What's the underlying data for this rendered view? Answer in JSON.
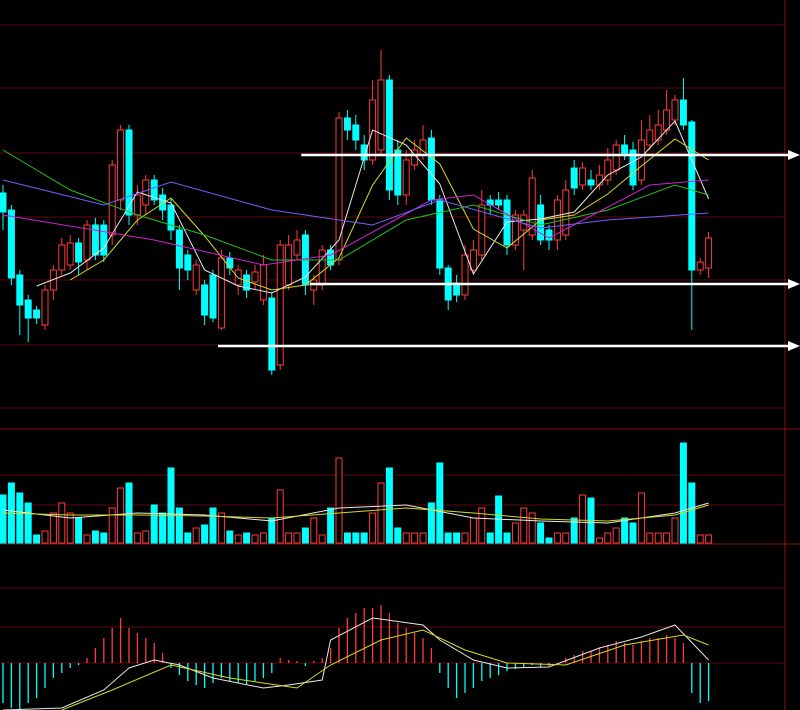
{
  "chart_data": [
    {
      "type": "candlestick",
      "open": [
        217,
        200,
        135,
        110,
        100,
        85,
        120,
        140,
        145,
        167,
        150,
        185,
        185,
        175,
        210,
        280,
        195,
        205,
        230,
        215,
        205,
        180,
        155,
        120,
        125,
        135,
        82,
        152,
        125,
        135,
        128,
        110,
        112,
        45,
        125,
        155,
        175,
        120,
        125,
        160,
        150,
        292,
        285,
        265,
        250,
        260,
        330,
        260,
        215,
        245,
        255,
        272,
        210,
        142,
        127,
        115,
        140,
        155,
        210,
        210,
        210,
        165,
        180,
        175,
        205,
        180,
        170,
        175,
        242,
        225,
        230,
        225,
        230,
        240,
        265,
        260,
        230,
        265,
        270,
        280,
        290,
        310,
        288,
        140,
        142
      ],
      "close": [
        198,
        132,
        105,
        92,
        92,
        120,
        140,
        165,
        167,
        148,
        185,
        155,
        155,
        245,
        280,
        195,
        215,
        230,
        210,
        200,
        180,
        142,
        140,
        145,
        95,
        92,
        152,
        142,
        140,
        120,
        138,
        145,
        40,
        165,
        165,
        170,
        125,
        130,
        160,
        145,
        292,
        280,
        270,
        250,
        310,
        330,
        220,
        215,
        250,
        260,
        270,
        210,
        142,
        110,
        115,
        155,
        160,
        205,
        205,
        205,
        165,
        195,
        195,
        232,
        170,
        170,
        210,
        220,
        222,
        242,
        225,
        235,
        250,
        265,
        255,
        225,
        270,
        280,
        285,
        300,
        310,
        285,
        140,
        148,
        172
      ],
      "high": [
        225,
        205,
        140,
        115,
        104,
        125,
        145,
        172,
        175,
        172,
        190,
        192,
        190,
        250,
        285,
        285,
        225,
        235,
        235,
        222,
        212,
        185,
        160,
        150,
        130,
        140,
        160,
        158,
        145,
        140,
        145,
        155,
        118,
        170,
        175,
        180,
        180,
        135,
        165,
        165,
        298,
        300,
        295,
        275,
        330,
        360,
        335,
        270,
        260,
        270,
        285,
        280,
        215,
        145,
        135,
        165,
        170,
        220,
        215,
        218,
        215,
        200,
        200,
        240,
        215,
        185,
        215,
        230,
        250,
        248,
        240,
        245,
        262,
        270,
        275,
        268,
        290,
        295,
        300,
        320,
        315,
        332,
        290,
        152,
        178
      ],
      "low": [
        180,
        125,
        75,
        68,
        86,
        80,
        110,
        135,
        140,
        135,
        140,
        150,
        148,
        165,
        200,
        185,
        185,
        195,
        205,
        190,
        170,
        120,
        130,
        115,
        85,
        88,
        80,
        135,
        115,
        112,
        120,
        105,
        35,
        40,
        120,
        150,
        115,
        105,
        120,
        140,
        145,
        270,
        260,
        240,
        245,
        255,
        210,
        205,
        205,
        240,
        250,
        205,
        135,
        100,
        108,
        110,
        135,
        150,
        195,
        200,
        155,
        160,
        140,
        170,
        165,
        160,
        160,
        170,
        215,
        220,
        220,
        220,
        225,
        235,
        250,
        220,
        225,
        260,
        265,
        275,
        285,
        280,
        80,
        135,
        132
      ],
      "ylim": [
        0,
        410
      ],
      "up_color": "#ff3c3c",
      "down_color": "#00ffff",
      "lines": [
        {
          "color": "#e8e8e8",
          "x": [
            4,
            8,
            12,
            16,
            20,
            24,
            28,
            32,
            36,
            40,
            44,
            48,
            52,
            56,
            60,
            64,
            68,
            72,
            76,
            80,
            84
          ],
          "values": [
            124,
            137,
            162,
            218,
            207,
            140,
            124,
            117,
            133,
            170,
            280,
            265,
            226,
            136,
            188,
            191,
            198,
            235,
            253,
            289,
            211
          ]
        },
        {
          "color": "#d8d820",
          "x": [
            8,
            12,
            16,
            20,
            24,
            28,
            32,
            36,
            40,
            44,
            48,
            52,
            56,
            60,
            64,
            68,
            72,
            76,
            80,
            84
          ],
          "values": [
            130,
            150,
            190,
            212,
            174,
            132,
            120,
            125,
            152,
            225,
            272,
            246,
            181,
            162,
            190,
            195,
            216,
            244,
            271,
            250
          ]
        },
        {
          "color": "#20c020",
          "x": [
            0,
            8,
            16,
            24,
            32,
            40,
            48,
            56,
            64,
            72,
            80,
            84
          ],
          "values": [
            260,
            220,
            195,
            175,
            150,
            150,
            190,
            205,
            185,
            200,
            225,
            215
          ]
        },
        {
          "color": "#d020d0",
          "x": [
            0,
            18,
            31,
            39,
            51,
            56,
            65,
            77,
            84
          ],
          "values": [
            195,
            170,
            145,
            155,
            210,
            215,
            172,
            225,
            230
          ]
        },
        {
          "color": "#7060ff",
          "x": [
            0,
            12,
            20,
            32,
            44,
            52,
            64,
            72,
            84
          ],
          "values": [
            230,
            205,
            228,
            200,
            185,
            210,
            182,
            190,
            197
          ]
        }
      ],
      "levels": [
        {
          "value": 255,
          "x": 35.5
        },
        {
          "value": 126,
          "x": 36.5
        },
        {
          "value": 64,
          "x": 25.6
        }
      ],
      "level_color": "#ffffff"
    },
    {
      "type": "volume",
      "values": [
        48,
        60,
        50,
        40,
        8,
        12,
        30,
        40,
        30,
        25,
        8,
        12,
        10,
        35,
        55,
        60,
        10,
        12,
        38,
        30,
        75,
        35,
        10,
        15,
        18,
        35,
        30,
        12,
        8,
        10,
        8,
        10,
        25,
        53,
        10,
        10,
        15,
        25,
        8,
        35,
        85,
        10,
        10,
        10,
        30,
        60,
        75,
        15,
        10,
        10,
        10,
        40,
        80,
        10,
        10,
        10,
        25,
        35,
        10,
        47,
        10,
        20,
        35,
        30,
        20,
        5,
        10,
        10,
        25,
        48,
        45,
        5,
        10,
        15,
        25,
        20,
        50,
        10,
        10,
        10,
        25,
        100,
        60,
        8,
        8
      ],
      "ylim": [
        0,
        113
      ],
      "lines": [
        {
          "color": "#e8e8e8",
          "x": [
            0,
            8,
            16,
            24,
            32,
            40,
            48,
            56,
            64,
            72,
            80,
            84
          ],
          "values": [
            33,
            25,
            30,
            28,
            22,
            35,
            38,
            25,
            22,
            20,
            30,
            40
          ]
        },
        {
          "color": "#d8d820",
          "x": [
            0,
            8,
            16,
            24,
            32,
            40,
            48,
            56,
            64,
            72,
            80,
            84
          ],
          "values": [
            30,
            28,
            28,
            27,
            25,
            30,
            35,
            30,
            24,
            22,
            28,
            38
          ]
        }
      ]
    },
    {
      "type": "macd",
      "values": [
        -40,
        -45,
        -47,
        -40,
        -35,
        -25,
        -15,
        -10,
        -5,
        -2,
        5,
        15,
        25,
        35,
        45,
        35,
        30,
        25,
        20,
        10,
        -5,
        -12,
        -18,
        -22,
        -25,
        -20,
        -15,
        -18,
        -20,
        -22,
        -18,
        -15,
        -10,
        5,
        3,
        2,
        -3,
        2,
        5,
        15,
        35,
        45,
        50,
        55,
        55,
        58,
        50,
        40,
        35,
        30,
        25,
        15,
        -10,
        -25,
        -35,
        -30,
        -25,
        -18,
        -15,
        -12,
        -8,
        -6,
        -5,
        -2,
        -4,
        -3,
        0,
        5,
        8,
        12,
        12,
        15,
        18,
        22,
        20,
        18,
        22,
        25,
        25,
        28,
        25,
        20,
        -30,
        -40,
        -38
      ],
      "ylim": [
        -47,
        118
      ],
      "up_color": "#ff3c3c",
      "down_color": "#00ffff",
      "lines": [
        {
          "color": "#e8e8e8",
          "x": [
            0,
            7,
            12,
            15,
            18,
            21,
            25,
            31,
            34,
            38,
            39,
            44,
            50,
            52,
            56,
            60,
            65,
            71,
            76,
            80,
            84
          ],
          "values": [
            -47,
            -45,
            -27,
            -5,
            3,
            -2,
            -15,
            -25,
            -22,
            -17,
            23,
            45,
            38,
            23,
            3,
            -5,
            -4,
            15,
            26,
            38,
            3
          ]
        },
        {
          "color": "#d8d820",
          "x": [
            7,
            13,
            20,
            27,
            35,
            39,
            45,
            50,
            55,
            60,
            67,
            74,
            81,
            84
          ],
          "values": [
            -47,
            -27,
            -2,
            -15,
            -25,
            -2,
            23,
            33,
            13,
            0,
            -2,
            18,
            28,
            18
          ]
        }
      ]
    }
  ]
}
